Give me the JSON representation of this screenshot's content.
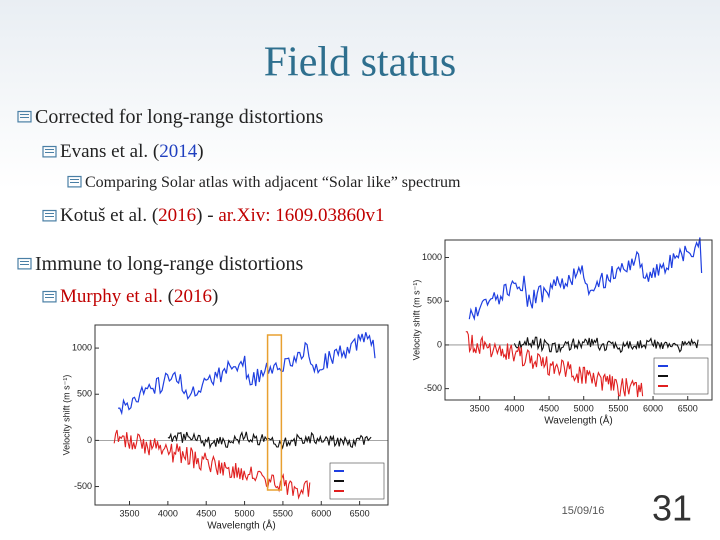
{
  "header": {
    "title": "Field status"
  },
  "items": [
    {
      "level": 1,
      "parts": [
        {
          "text": "Corrected for long-range distortions",
          "color": "#222222"
        }
      ]
    },
    {
      "level": 2,
      "parts": [
        {
          "text": "Evans et al. (",
          "color": "#222222"
        },
        {
          "text": "2014",
          "color": "#1f3fbf"
        },
        {
          "text": ")",
          "color": "#222222"
        }
      ]
    },
    {
      "level": 3,
      "parts": [
        {
          "text": "Comparing Solar atlas with adjacent “Solar like” spectrum",
          "color": "#222222"
        }
      ]
    },
    {
      "level": 2,
      "parts": [
        {
          "text": "Kotuš et al. (",
          "color": "#222222"
        },
        {
          "text": "2016",
          "color": "#c00000"
        },
        {
          "text": ") - ",
          "color": "#222222"
        },
        {
          "text": "ar.Xiv: 1609.03860v1",
          "color": "#c00000"
        }
      ]
    },
    {
      "level": 1,
      "parts": [
        {
          "text": "Immune to long-range distortions",
          "color": "#222222"
        }
      ]
    },
    {
      "level": 2,
      "parts": [
        {
          "text": "Murphy et al.",
          "color": "#c00000"
        },
        {
          "text": " (",
          "color": "#222222"
        },
        {
          "text": "2016",
          "color": "#c00000"
        },
        {
          "text": ")",
          "color": "#222222"
        }
      ]
    }
  ],
  "figures": [
    {
      "xlabel": "Wavelength (Å)",
      "ylabel": "Velocity shift (m s⁻¹)",
      "xlim": [
        3050,
        6870
      ],
      "ylim": [
        -700,
        1250
      ],
      "xticks": [
        3500,
        4000,
        4500,
        5000,
        5500,
        6000,
        6500
      ],
      "yticks": [
        -500,
        0,
        500,
        1000
      ]
    },
    {
      "xlabel": "Wavelength (Å)",
      "ylabel": "Velocity shift (m s⁻¹)",
      "xlim": [
        3000,
        6850
      ],
      "ylim": [
        -630,
        1200
      ],
      "xticks": [
        3500,
        4000,
        4500,
        5000,
        5500,
        6000,
        6500
      ],
      "yticks": [
        -500,
        0,
        500,
        1000
      ]
    }
  ],
  "footer": {
    "date": "15/09/16",
    "page": "31"
  }
}
